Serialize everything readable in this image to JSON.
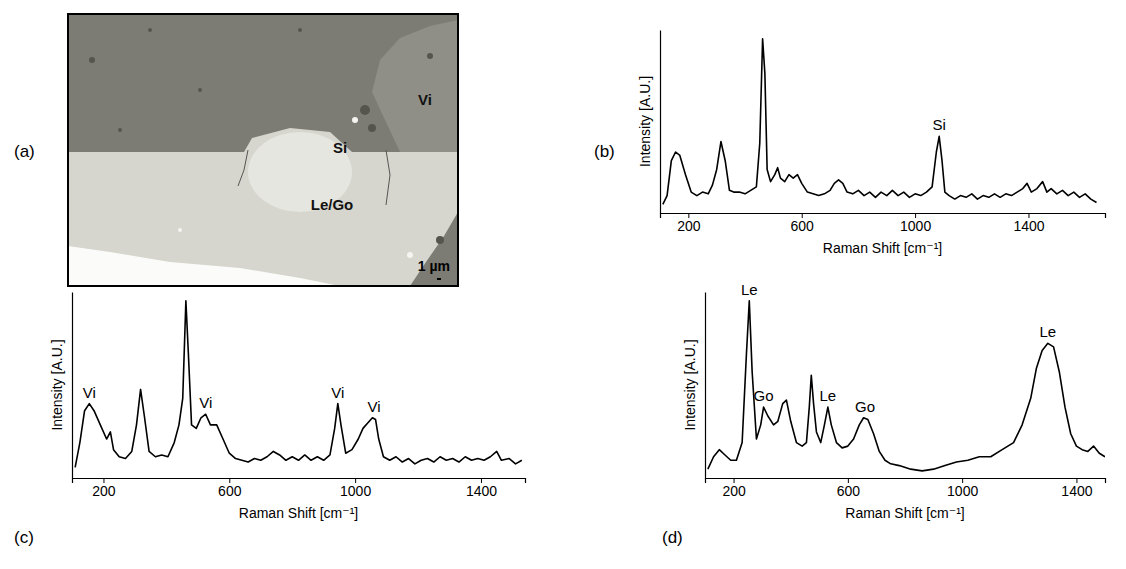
{
  "panel_labels": [
    "(a)",
    "(b)",
    "(c)",
    "(d)"
  ],
  "image": {
    "labels": [
      "Si",
      "Vi",
      "Le/Go"
    ],
    "scale_bar": "1 µm"
  },
  "chart_data": [
    {
      "type": "line",
      "x_label": "Raman Shift [cm⁻¹]",
      "y_label": "Intensity [A.U.]",
      "xlim": [
        100,
        1670
      ],
      "xticks": [
        200,
        600,
        1000,
        1400
      ],
      "ylim": [
        0,
        1.05
      ],
      "tick_labels": "x",
      "x": [
        110,
        125,
        140,
        155,
        170,
        190,
        210,
        230,
        250,
        270,
        285,
        300,
        315,
        330,
        345,
        360,
        380,
        400,
        420,
        440,
        452,
        462,
        470,
        478,
        490,
        505,
        515,
        525,
        540,
        555,
        570,
        585,
        600,
        620,
        640,
        660,
        680,
        700,
        715,
        730,
        745,
        760,
        780,
        800,
        820,
        840,
        860,
        880,
        900,
        920,
        940,
        960,
        980,
        1000,
        1020,
        1040,
        1060,
        1075,
        1085,
        1095,
        1105,
        1120,
        1140,
        1160,
        1180,
        1200,
        1220,
        1240,
        1260,
        1280,
        1300,
        1320,
        1340,
        1360,
        1380,
        1395,
        1410,
        1430,
        1450,
        1465,
        1480,
        1500,
        1520,
        1540,
        1560,
        1580,
        1600,
        1620,
        1640
      ],
      "series": [
        {
          "color": "#000000",
          "values": [
            0.05,
            0.1,
            0.3,
            0.35,
            0.33,
            0.22,
            0.12,
            0.1,
            0.12,
            0.11,
            0.16,
            0.25,
            0.41,
            0.3,
            0.13,
            0.12,
            0.12,
            0.11,
            0.13,
            0.15,
            0.4,
            1.0,
            0.8,
            0.25,
            0.18,
            0.22,
            0.26,
            0.2,
            0.18,
            0.22,
            0.2,
            0.22,
            0.17,
            0.12,
            0.11,
            0.1,
            0.11,
            0.13,
            0.17,
            0.19,
            0.17,
            0.12,
            0.11,
            0.13,
            0.1,
            0.12,
            0.09,
            0.12,
            0.1,
            0.13,
            0.1,
            0.12,
            0.09,
            0.11,
            0.1,
            0.12,
            0.15,
            0.35,
            0.44,
            0.3,
            0.12,
            0.1,
            0.08,
            0.1,
            0.09,
            0.11,
            0.08,
            0.1,
            0.09,
            0.11,
            0.09,
            0.11,
            0.1,
            0.12,
            0.14,
            0.17,
            0.12,
            0.14,
            0.18,
            0.12,
            0.14,
            0.11,
            0.13,
            0.1,
            0.12,
            0.09,
            0.11,
            0.08,
            0.06
          ]
        }
      ],
      "annotations": [
        {
          "text": "Si",
          "x": 1085,
          "y": 0.44
        }
      ]
    },
    {
      "type": "line",
      "x_label": "Raman Shift [cm⁻¹]",
      "y_label": "Intensity [A.U.]",
      "xlim": [
        100,
        1540
      ],
      "xticks": [
        200,
        600,
        1000,
        1400
      ],
      "ylim": [
        0,
        1.05
      ],
      "tick_labels": "x",
      "x": [
        110,
        125,
        140,
        155,
        170,
        190,
        210,
        222,
        232,
        250,
        270,
        290,
        305,
        318,
        330,
        345,
        365,
        385,
        405,
        425,
        440,
        452,
        462,
        470,
        480,
        495,
        510,
        525,
        540,
        560,
        580,
        600,
        620,
        640,
        660,
        680,
        700,
        720,
        740,
        760,
        780,
        800,
        820,
        840,
        860,
        880,
        900,
        920,
        935,
        945,
        955,
        970,
        990,
        1010,
        1025,
        1040,
        1055,
        1065,
        1075,
        1090,
        1110,
        1130,
        1150,
        1170,
        1190,
        1210,
        1230,
        1250,
        1270,
        1290,
        1310,
        1330,
        1350,
        1370,
        1390,
        1410,
        1430,
        1450,
        1465,
        1490,
        1510,
        1530
      ],
      "series": [
        {
          "color": "#000000",
          "values": [
            0.06,
            0.2,
            0.38,
            0.42,
            0.38,
            0.3,
            0.22,
            0.26,
            0.16,
            0.12,
            0.11,
            0.15,
            0.3,
            0.5,
            0.35,
            0.15,
            0.12,
            0.13,
            0.12,
            0.2,
            0.3,
            0.45,
            1.0,
            0.7,
            0.3,
            0.28,
            0.34,
            0.36,
            0.3,
            0.3,
            0.22,
            0.14,
            0.11,
            0.1,
            0.09,
            0.11,
            0.1,
            0.12,
            0.15,
            0.13,
            0.1,
            0.12,
            0.1,
            0.13,
            0.1,
            0.12,
            0.1,
            0.13,
            0.28,
            0.42,
            0.3,
            0.14,
            0.16,
            0.22,
            0.28,
            0.31,
            0.34,
            0.33,
            0.22,
            0.12,
            0.1,
            0.12,
            0.09,
            0.11,
            0.08,
            0.1,
            0.11,
            0.09,
            0.12,
            0.1,
            0.11,
            0.09,
            0.12,
            0.1,
            0.11,
            0.1,
            0.12,
            0.15,
            0.1,
            0.11,
            0.08,
            0.1
          ]
        }
      ],
      "annotations": [
        {
          "text": "Vi",
          "x": 155,
          "y": 0.42
        },
        {
          "text": "Vi",
          "x": 525,
          "y": 0.36
        },
        {
          "text": "Vi",
          "x": 945,
          "y": 0.42
        },
        {
          "text": "Vi",
          "x": 1060,
          "y": 0.34
        }
      ]
    },
    {
      "type": "line",
      "x_label": "Raman Shift [cm⁻¹]",
      "y_label": "Intensity [A.U.]",
      "xlim": [
        100,
        1500
      ],
      "xticks": [
        200,
        600,
        1000,
        1400
      ],
      "ylim": [
        0,
        1.05
      ],
      "tick_labels": "x",
      "x": [
        110,
        130,
        150,
        170,
        190,
        210,
        230,
        245,
        255,
        265,
        280,
        295,
        305,
        320,
        340,
        355,
        372,
        385,
        400,
        420,
        440,
        455,
        465,
        472,
        480,
        490,
        505,
        518,
        530,
        542,
        560,
        580,
        600,
        620,
        640,
        655,
        670,
        690,
        710,
        730,
        750,
        780,
        820,
        860,
        900,
        940,
        980,
        1020,
        1060,
        1100,
        1140,
        1180,
        1210,
        1240,
        1260,
        1280,
        1300,
        1320,
        1340,
        1360,
        1380,
        1400,
        1420,
        1440,
        1460,
        1480,
        1500
      ],
      "series": [
        {
          "color": "#000000",
          "values": [
            0.05,
            0.12,
            0.16,
            0.13,
            0.1,
            0.1,
            0.2,
            0.7,
            1.0,
            0.6,
            0.22,
            0.3,
            0.4,
            0.35,
            0.3,
            0.32,
            0.42,
            0.44,
            0.32,
            0.2,
            0.18,
            0.2,
            0.4,
            0.58,
            0.42,
            0.26,
            0.2,
            0.3,
            0.4,
            0.3,
            0.2,
            0.17,
            0.18,
            0.22,
            0.3,
            0.34,
            0.33,
            0.25,
            0.15,
            0.1,
            0.08,
            0.07,
            0.05,
            0.04,
            0.05,
            0.07,
            0.09,
            0.1,
            0.12,
            0.12,
            0.16,
            0.2,
            0.3,
            0.45,
            0.62,
            0.72,
            0.76,
            0.74,
            0.6,
            0.4,
            0.25,
            0.18,
            0.16,
            0.15,
            0.18,
            0.14,
            0.12
          ]
        }
      ],
      "annotations": [
        {
          "text": "Le",
          "x": 255,
          "y": 1.0
        },
        {
          "text": "Go",
          "x": 305,
          "y": 0.4
        },
        {
          "text": "Le",
          "x": 530,
          "y": 0.4
        },
        {
          "text": "Go",
          "x": 660,
          "y": 0.34
        },
        {
          "text": "Le",
          "x": 1300,
          "y": 0.76
        }
      ]
    }
  ]
}
